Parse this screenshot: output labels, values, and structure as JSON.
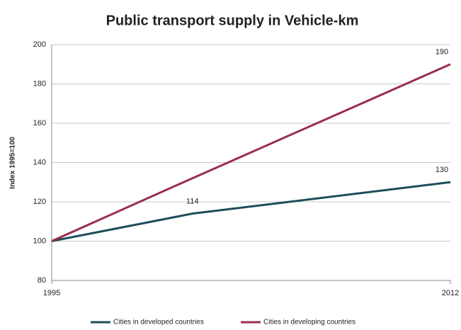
{
  "chart_data": {
    "type": "line",
    "title": "Public transport supply in Vehicle-km",
    "y_label": "Index 1995=100",
    "x": [
      1995,
      2001,
      2012
    ],
    "xlim": [
      1995,
      2012
    ],
    "xticks": [
      1995,
      2012
    ],
    "ylim": [
      80,
      200
    ],
    "yticks": [
      80,
      100,
      120,
      140,
      160,
      180,
      200
    ],
    "grid": true,
    "legend": "bottom",
    "series": [
      {
        "name": "Cities in developed countries",
        "color": "#1e4d5a",
        "values": [
          100,
          114,
          130
        ],
        "value_labels": [
          null,
          "114",
          "130"
        ]
      },
      {
        "name": "Cities in developing countries",
        "color": "#9a2f4c",
        "values": [
          100,
          132,
          190
        ],
        "value_labels": [
          null,
          null,
          "190"
        ]
      }
    ]
  }
}
